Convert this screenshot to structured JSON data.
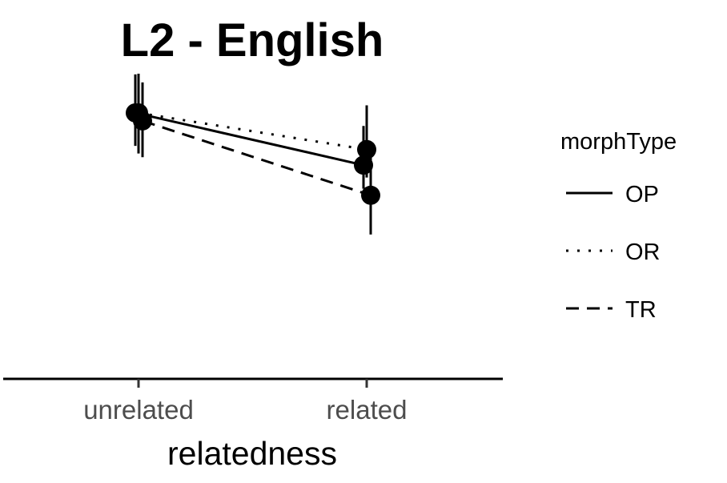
{
  "chart_data": {
    "type": "line",
    "title": "L2 - English",
    "xlabel": "relatedness",
    "ylabel": "",
    "categories": [
      "unrelated",
      "related"
    ],
    "ylim": [
      0,
      1
    ],
    "grid": false,
    "legend": {
      "title": "morphType",
      "position": "right"
    },
    "series": [
      {
        "name": "OP",
        "linetype": "solid",
        "values": [
          0.733,
          0.589
        ],
        "error_low": [
          0.642,
          0.524
        ],
        "error_high": [
          0.839,
          0.697
        ]
      },
      {
        "name": "OR",
        "linetype": "dotted",
        "values": [
          0.733,
          0.632
        ],
        "error_low": [
          0.621,
          0.555
        ],
        "error_high": [
          0.841,
          0.754
        ]
      },
      {
        "name": "TR",
        "linetype": "dashed",
        "values": [
          0.711,
          0.506
        ],
        "error_low": [
          0.611,
          0.398
        ],
        "error_high": [
          0.817,
          0.614
        ]
      }
    ],
    "colors": {
      "line": "#000000",
      "tick_label": "#4d4d4d"
    }
  }
}
